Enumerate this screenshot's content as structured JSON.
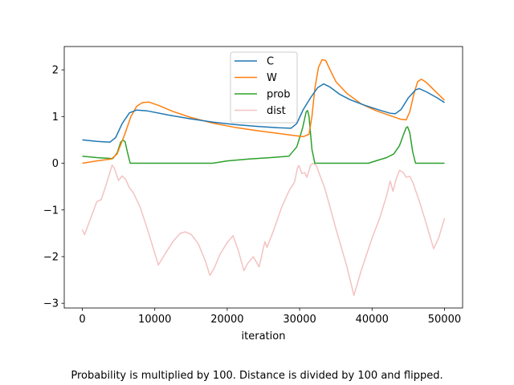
{
  "chart_data": {
    "type": "line",
    "title": "",
    "xlabel": "iteration",
    "ylabel": "",
    "xlim": [
      -2500,
      52500
    ],
    "ylim": [
      -3.1,
      2.5
    ],
    "xticks": [
      0,
      10000,
      20000,
      30000,
      40000,
      50000
    ],
    "yticks": [
      -3,
      -2,
      -1,
      0,
      1,
      2
    ],
    "legend_position": "top-center",
    "grid": false,
    "caption": "Probability is multiplied by 100. Distance is divided by 100 and flipped.",
    "series": [
      {
        "name": "C",
        "color": "#1f77b4",
        "points": [
          [
            0,
            0.5
          ],
          [
            2000,
            0.47
          ],
          [
            3800,
            0.45
          ],
          [
            4600,
            0.55
          ],
          [
            5500,
            0.85
          ],
          [
            6500,
            1.08
          ],
          [
            7500,
            1.14
          ],
          [
            9000,
            1.12
          ],
          [
            12000,
            1.03
          ],
          [
            15000,
            0.95
          ],
          [
            18000,
            0.88
          ],
          [
            21000,
            0.83
          ],
          [
            24000,
            0.79
          ],
          [
            27000,
            0.76
          ],
          [
            28800,
            0.75
          ],
          [
            29600,
            0.85
          ],
          [
            30500,
            1.15
          ],
          [
            31500,
            1.4
          ],
          [
            32500,
            1.62
          ],
          [
            33300,
            1.7
          ],
          [
            34200,
            1.63
          ],
          [
            35500,
            1.48
          ],
          [
            37000,
            1.36
          ],
          [
            39000,
            1.24
          ],
          [
            41000,
            1.14
          ],
          [
            42500,
            1.07
          ],
          [
            43200,
            1.06
          ],
          [
            44000,
            1.15
          ],
          [
            45000,
            1.4
          ],
          [
            46000,
            1.57
          ],
          [
            46500,
            1.6
          ],
          [
            47500,
            1.53
          ],
          [
            49000,
            1.4
          ],
          [
            50000,
            1.3
          ]
        ]
      },
      {
        "name": "W",
        "color": "#ff7f0e",
        "points": [
          [
            0,
            0.0
          ],
          [
            2000,
            0.05
          ],
          [
            4000,
            0.09
          ],
          [
            4800,
            0.2
          ],
          [
            5800,
            0.6
          ],
          [
            6700,
            1.0
          ],
          [
            7500,
            1.22
          ],
          [
            8300,
            1.3
          ],
          [
            9200,
            1.31
          ],
          [
            10500,
            1.24
          ],
          [
            12500,
            1.11
          ],
          [
            15000,
            0.98
          ],
          [
            18000,
            0.86
          ],
          [
            21000,
            0.77
          ],
          [
            24000,
            0.7
          ],
          [
            27000,
            0.64
          ],
          [
            29500,
            0.59
          ],
          [
            30500,
            0.57
          ],
          [
            31300,
            0.62
          ],
          [
            31700,
            1.0
          ],
          [
            32100,
            1.6
          ],
          [
            32600,
            2.05
          ],
          [
            33100,
            2.22
          ],
          [
            33600,
            2.2
          ],
          [
            34200,
            2.0
          ],
          [
            35000,
            1.75
          ],
          [
            36500,
            1.5
          ],
          [
            38500,
            1.27
          ],
          [
            40500,
            1.13
          ],
          [
            42500,
            1.02
          ],
          [
            44000,
            0.94
          ],
          [
            44700,
            0.93
          ],
          [
            45200,
            1.1
          ],
          [
            45800,
            1.5
          ],
          [
            46300,
            1.75
          ],
          [
            46800,
            1.8
          ],
          [
            47500,
            1.73
          ],
          [
            49000,
            1.5
          ],
          [
            50000,
            1.35
          ]
        ]
      },
      {
        "name": "prob",
        "color": "#2ca02c",
        "points": [
          [
            0,
            0.15
          ],
          [
            2000,
            0.12
          ],
          [
            4200,
            0.1
          ],
          [
            4800,
            0.22
          ],
          [
            5300,
            0.45
          ],
          [
            5600,
            0.5
          ],
          [
            5900,
            0.46
          ],
          [
            6200,
            0.25
          ],
          [
            6600,
            0.0
          ],
          [
            18000,
            0.0
          ],
          [
            20000,
            0.05
          ],
          [
            23000,
            0.09
          ],
          [
            26000,
            0.12
          ],
          [
            28500,
            0.15
          ],
          [
            29600,
            0.35
          ],
          [
            30400,
            0.75
          ],
          [
            30900,
            1.1
          ],
          [
            31100,
            1.13
          ],
          [
            31300,
            1.0
          ],
          [
            31700,
            0.3
          ],
          [
            32100,
            0.0
          ],
          [
            39500,
            0.0
          ],
          [
            40500,
            0.05
          ],
          [
            42000,
            0.12
          ],
          [
            43000,
            0.2
          ],
          [
            43800,
            0.38
          ],
          [
            44300,
            0.6
          ],
          [
            44700,
            0.76
          ],
          [
            44900,
            0.78
          ],
          [
            45200,
            0.66
          ],
          [
            45600,
            0.25
          ],
          [
            46000,
            0.0
          ],
          [
            50000,
            0.0
          ]
        ]
      },
      {
        "name": "dist",
        "color": "#f4c2c2",
        "points": [
          [
            0,
            -1.42
          ],
          [
            300,
            -1.53
          ],
          [
            2000,
            -0.82
          ],
          [
            2600,
            -0.78
          ],
          [
            3200,
            -0.5
          ],
          [
            3800,
            -0.2
          ],
          [
            4100,
            -0.04
          ],
          [
            4400,
            -0.1
          ],
          [
            5000,
            -0.37
          ],
          [
            5500,
            -0.27
          ],
          [
            6000,
            -0.35
          ],
          [
            6500,
            -0.53
          ],
          [
            7000,
            -0.62
          ],
          [
            8000,
            -0.95
          ],
          [
            9000,
            -1.42
          ],
          [
            10500,
            -2.18
          ],
          [
            11500,
            -1.92
          ],
          [
            12500,
            -1.68
          ],
          [
            13500,
            -1.5
          ],
          [
            14200,
            -1.47
          ],
          [
            15000,
            -1.52
          ],
          [
            16000,
            -1.72
          ],
          [
            17000,
            -2.1
          ],
          [
            17600,
            -2.4
          ],
          [
            18200,
            -2.25
          ],
          [
            19000,
            -1.95
          ],
          [
            20000,
            -1.7
          ],
          [
            20800,
            -1.55
          ],
          [
            21500,
            -1.85
          ],
          [
            22300,
            -2.3
          ],
          [
            22800,
            -2.15
          ],
          [
            23600,
            -2.0
          ],
          [
            24400,
            -2.22
          ],
          [
            25200,
            -1.68
          ],
          [
            25500,
            -1.8
          ],
          [
            26500,
            -1.4
          ],
          [
            27500,
            -0.95
          ],
          [
            28500,
            -0.6
          ],
          [
            29300,
            -0.4
          ],
          [
            29700,
            -0.1
          ],
          [
            29900,
            -0.05
          ],
          [
            30300,
            -0.22
          ],
          [
            30700,
            -0.2
          ],
          [
            31000,
            -0.3
          ],
          [
            31500,
            -0.05
          ],
          [
            31800,
            0.0
          ],
          [
            32300,
            -0.05
          ],
          [
            33500,
            -0.55
          ],
          [
            35000,
            -1.4
          ],
          [
            36500,
            -2.2
          ],
          [
            37500,
            -2.83
          ],
          [
            38500,
            -2.3
          ],
          [
            40000,
            -1.6
          ],
          [
            41000,
            -1.2
          ],
          [
            42000,
            -0.7
          ],
          [
            42500,
            -0.38
          ],
          [
            42900,
            -0.6
          ],
          [
            43300,
            -0.35
          ],
          [
            43800,
            -0.15
          ],
          [
            44300,
            -0.2
          ],
          [
            44700,
            -0.3
          ],
          [
            45200,
            -0.28
          ],
          [
            45600,
            -0.4
          ],
          [
            46500,
            -0.8
          ],
          [
            47500,
            -1.3
          ],
          [
            48500,
            -1.83
          ],
          [
            49200,
            -1.6
          ],
          [
            50000,
            -1.18
          ]
        ]
      }
    ]
  }
}
